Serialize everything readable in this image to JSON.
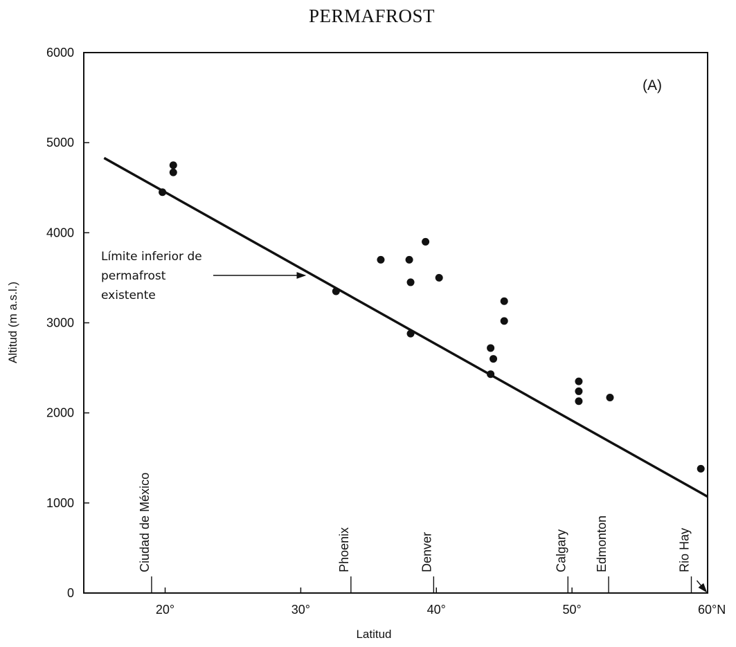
{
  "chart_data": {
    "type": "scatter",
    "title": "PERMAFROST",
    "panel_label": "(A)",
    "xlabel": "Latitud",
    "ylabel": "Altitud   (m a.s.l.)",
    "xlim": [
      14,
      60
    ],
    "ylim": [
      0,
      6000
    ],
    "x_ticks": [
      {
        "value": 20,
        "label": "20°"
      },
      {
        "value": 30,
        "label": "30°"
      },
      {
        "value": 40,
        "label": "40°"
      },
      {
        "value": 50,
        "label": "50°"
      },
      {
        "value": 60,
        "label": "60°N"
      }
    ],
    "y_ticks": [
      {
        "value": 0,
        "label": "0"
      },
      {
        "value": 1000,
        "label": "1000"
      },
      {
        "value": 2000,
        "label": "2000"
      },
      {
        "value": 3000,
        "label": "3000"
      },
      {
        "value": 4000,
        "label": "4000"
      },
      {
        "value": 5000,
        "label": "5000"
      },
      {
        "value": 6000,
        "label": "6000"
      }
    ],
    "cities": [
      {
        "name": "Ciudad de México",
        "lat": 19.0
      },
      {
        "name": "Phoenix",
        "lat": 33.7
      },
      {
        "name": "Denver",
        "lat": 39.8
      },
      {
        "name": "Calgary",
        "lat": 49.7
      },
      {
        "name": "Edmonton",
        "lat": 52.7
      },
      {
        "name": "Rio Hay",
        "lat": 58.8
      }
    ],
    "points": [
      {
        "x": 19.8,
        "y": 4450
      },
      {
        "x": 20.6,
        "y": 4750
      },
      {
        "x": 20.6,
        "y": 4670
      },
      {
        "x": 32.6,
        "y": 3350
      },
      {
        "x": 35.9,
        "y": 3700
      },
      {
        "x": 38.0,
        "y": 3700
      },
      {
        "x": 38.1,
        "y": 3450
      },
      {
        "x": 38.1,
        "y": 2880
      },
      {
        "x": 39.2,
        "y": 3900
      },
      {
        "x": 40.2,
        "y": 3500
      },
      {
        "x": 44.0,
        "y": 2720
      },
      {
        "x": 44.2,
        "y": 2600
      },
      {
        "x": 44.0,
        "y": 2430
      },
      {
        "x": 45.0,
        "y": 3240
      },
      {
        "x": 45.0,
        "y": 3020
      },
      {
        "x": 50.5,
        "y": 2350
      },
      {
        "x": 50.5,
        "y": 2240
      },
      {
        "x": 50.5,
        "y": 2130
      },
      {
        "x": 52.8,
        "y": 2170
      },
      {
        "x": 59.5,
        "y": 1380
      }
    ],
    "trend_line": [
      {
        "x": 15.5,
        "y": 4830
      },
      {
        "x": 60,
        "y": 1070
      }
    ],
    "annotation": {
      "lines": [
        "Límite inferior de",
        "permafrost",
        "existente"
      ],
      "arrow_target": {
        "x": 30.3,
        "y": 3550
      }
    }
  }
}
